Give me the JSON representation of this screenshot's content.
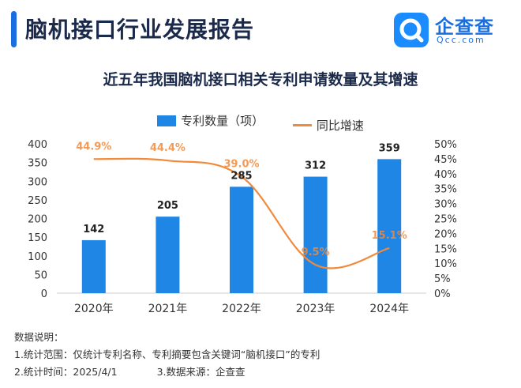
{
  "header": {
    "title": "脑机接口行业发展报告",
    "logo_name": "企查查",
    "logo_domain": "Qcc.com"
  },
  "colors": {
    "bar": "#1f86e5",
    "line": "#f08a3c",
    "accent": "#1a6fe0"
  },
  "chart_data": {
    "type": "bar",
    "title": "近五年我国脑机接口相关专利申请数量及其增速",
    "categories": [
      "2020年",
      "2021年",
      "2022年",
      "2023年",
      "2024年"
    ],
    "series": [
      {
        "name": "专利数量（项）",
        "type": "bar",
        "axis": "left",
        "values": [
          142,
          205,
          285,
          312,
          359
        ],
        "labels": [
          "142",
          "205",
          "285",
          "312",
          "359"
        ]
      },
      {
        "name": "同比增速",
        "type": "line",
        "axis": "right",
        "values": [
          44.9,
          44.4,
          39.0,
          9.5,
          15.1
        ],
        "labels": [
          "44.9%",
          "44.4%",
          "39.0%",
          "9.5%",
          "15.1%"
        ]
      }
    ],
    "y_left": {
      "min": 0,
      "max": 400,
      "ticks": [
        "0",
        "50",
        "100",
        "150",
        "200",
        "250",
        "300",
        "350",
        "400"
      ]
    },
    "y_right": {
      "min": 0,
      "max": 50,
      "ticks": [
        "0%",
        "5%",
        "10%",
        "15%",
        "20%",
        "25%",
        "30%",
        "35%",
        "40%",
        "45%",
        "50%"
      ]
    },
    "grid": false,
    "legend": "top-center"
  },
  "notes": {
    "heading": "数据说明：",
    "scope": "1.统计范围：仅统计专利名称、专利摘要包含关键词“脑机接口”的专利",
    "time": "2.统计时间：2025/4/1",
    "source": "3.数据来源：企查查"
  }
}
